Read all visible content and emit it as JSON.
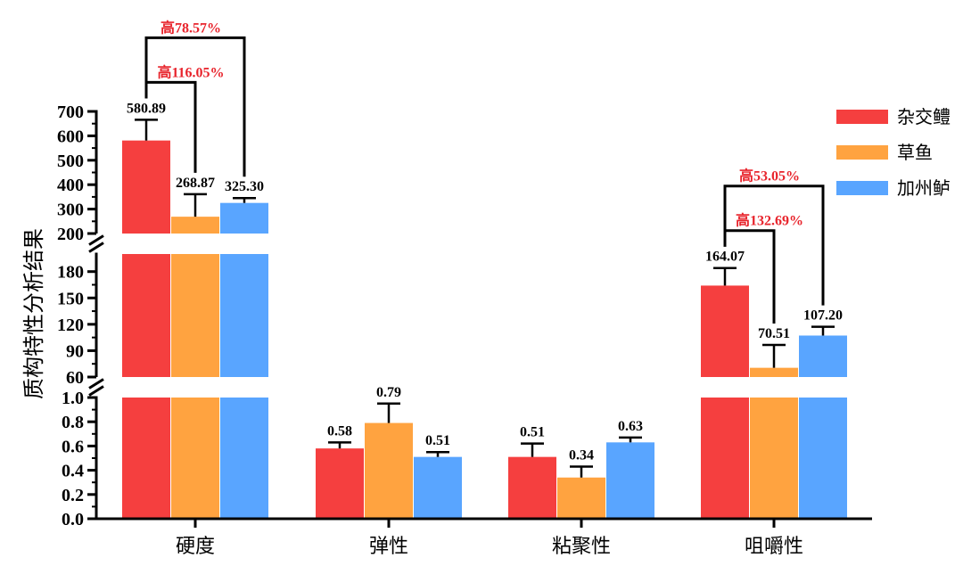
{
  "chart_data": {
    "type": "bar",
    "ylabel": "质构特性分析结果",
    "categories": [
      "硬度",
      "弹性",
      "粘聚性",
      "咀嚼性"
    ],
    "series": [
      {
        "name": "杂交鳢",
        "color": "#f53f3f",
        "values": [
          580.89,
          0.58,
          0.51,
          164.07
        ],
        "errors": [
          85,
          0.05,
          0.11,
          20
        ],
        "labels": [
          "580.89",
          "0.58",
          "0.51",
          "164.07"
        ]
      },
      {
        "name": "草鱼",
        "color": "#ffa340",
        "values": [
          268.87,
          0.79,
          0.34,
          70.51
        ],
        "errors": [
          92,
          0.16,
          0.09,
          26
        ],
        "labels": [
          "268.87",
          "0.79",
          "0.34",
          "70.51"
        ]
      },
      {
        "name": "加州鲈",
        "color": "#59a5ff",
        "values": [
          325.3,
          0.51,
          0.63,
          107.2
        ],
        "errors": [
          20,
          0.04,
          0.04,
          10
        ],
        "labels": [
          "325.30",
          "0.51",
          "0.63",
          "107.20"
        ]
      }
    ],
    "axis_segments": [
      {
        "range": [
          0,
          1.0
        ],
        "ticks": [
          0.0,
          0.2,
          0.4,
          0.6,
          0.8,
          1.0
        ],
        "tick_labels": [
          "0.0",
          "0.2",
          "0.4",
          "0.6",
          "0.8",
          "1.0"
        ]
      },
      {
        "range": [
          60,
          200
        ],
        "ticks": [
          60,
          90,
          120,
          150,
          180
        ],
        "tick_labels": [
          "60",
          "90",
          "120",
          "150",
          "180"
        ]
      },
      {
        "range": [
          200,
          700
        ],
        "ticks": [
          200,
          300,
          400,
          500,
          600,
          700
        ],
        "tick_labels": [
          "200",
          "300",
          "400",
          "500",
          "600",
          "700"
        ]
      }
    ],
    "annotations": [
      {
        "category": 0,
        "from_series": 0,
        "to_series": 2,
        "text": "高78.57%",
        "color": "#e8242c"
      },
      {
        "category": 0,
        "from_series": 0,
        "to_series": 1,
        "text": "高116.05%",
        "color": "#e8242c"
      },
      {
        "category": 3,
        "from_series": 0,
        "to_series": 2,
        "text": "高53.05%",
        "color": "#e8242c"
      },
      {
        "category": 3,
        "from_series": 0,
        "to_series": 1,
        "text": "高132.69%",
        "color": "#e8242c"
      }
    ],
    "legend": {
      "position": "top-right"
    },
    "grid": false
  }
}
